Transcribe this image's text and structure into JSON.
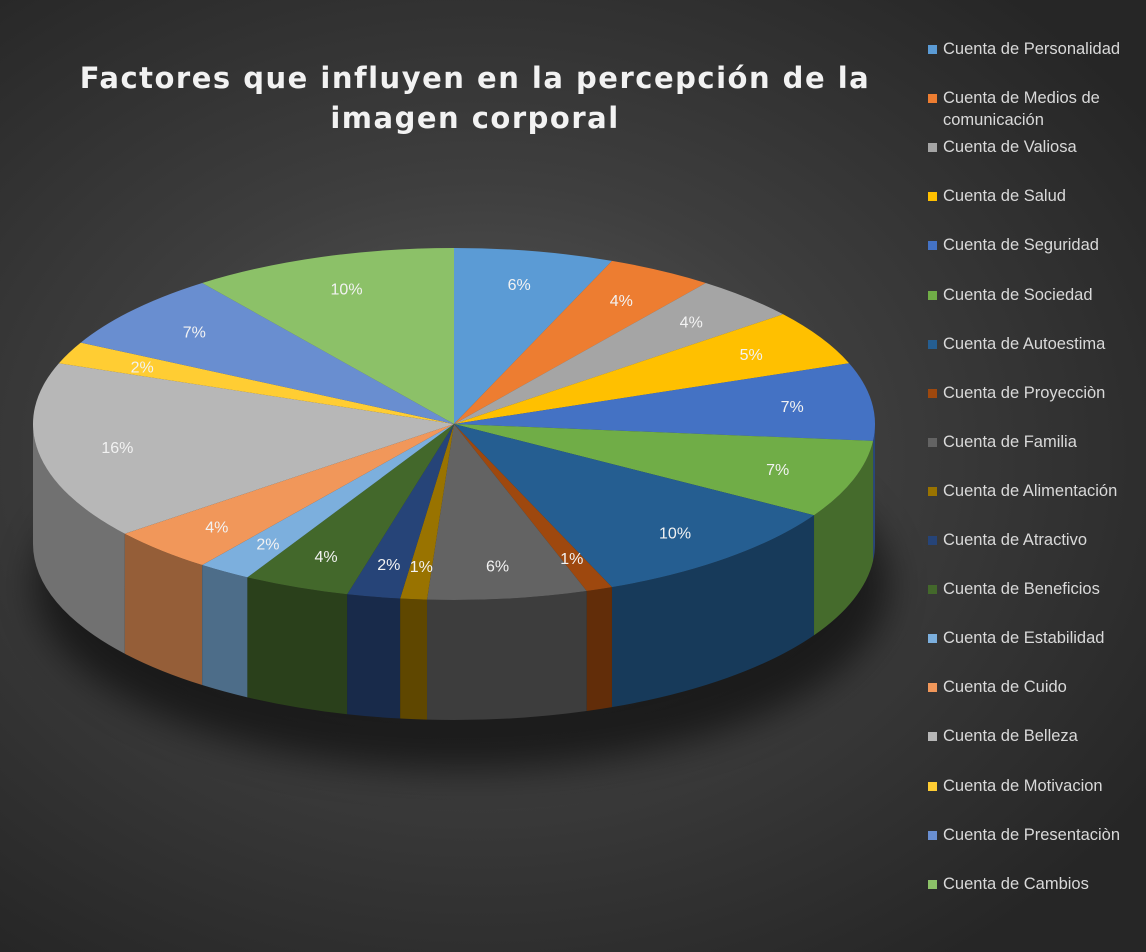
{
  "chart_data": {
    "type": "pie",
    "title": "Factores que influyen en la percepción de la imagen corporal",
    "slices": [
      {
        "label": "Cuenta de Personalidad",
        "value": 6,
        "color": "#5b9bd5"
      },
      {
        "label": "Cuenta de Medios de comunicación",
        "value": 4,
        "color": "#ed7d31"
      },
      {
        "label": "Cuenta de Valiosa",
        "value": 4,
        "color": "#a5a5a5"
      },
      {
        "label": "Cuenta de Salud",
        "value": 5,
        "color": "#ffc000"
      },
      {
        "label": "Cuenta de Seguridad",
        "value": 7,
        "color": "#4472c4"
      },
      {
        "label": "Cuenta de Sociedad",
        "value": 7,
        "color": "#70ad47"
      },
      {
        "label": "Cuenta de Autoestima",
        "value": 10,
        "color": "#255e91"
      },
      {
        "label": "Cuenta de Proyecciòn",
        "value": 1,
        "color": "#9e480e"
      },
      {
        "label": "Cuenta de Familia",
        "value": 6,
        "color": "#636363"
      },
      {
        "label": "Cuenta de Alimentación",
        "value": 1,
        "color": "#997300"
      },
      {
        "label": "Cuenta de Atractivo",
        "value": 2,
        "color": "#264478"
      },
      {
        "label": "Cuenta de Beneficios",
        "value": 4,
        "color": "#43682b"
      },
      {
        "label": "Cuenta de Estabilidad",
        "value": 2,
        "color": "#7cafdd"
      },
      {
        "label": "Cuenta de Cuido",
        "value": 4,
        "color": "#f1975a"
      },
      {
        "label": "Cuenta de Belleza",
        "value": 16,
        "color": "#b7b7b7"
      },
      {
        "label": "Cuenta de Motivacion",
        "value": 2,
        "color": "#ffcd33"
      },
      {
        "label": "Cuenta de Presentaciòn",
        "value": 7,
        "color": "#698ed0"
      },
      {
        "label": "Cuenta de Cambios",
        "value": 10,
        "color": "#8cc168"
      }
    ],
    "data_labels": [
      "6%",
      "4%",
      "4%",
      "5%",
      "7%",
      "7%",
      "10%",
      "1%",
      "6%",
      "1%",
      "2%",
      "4%",
      "2%",
      "4%",
      "16%",
      "2%",
      "7%",
      "10%"
    ],
    "legend_position": "right",
    "start_angle": "12 o'clock, clockwise",
    "style": "3d"
  }
}
